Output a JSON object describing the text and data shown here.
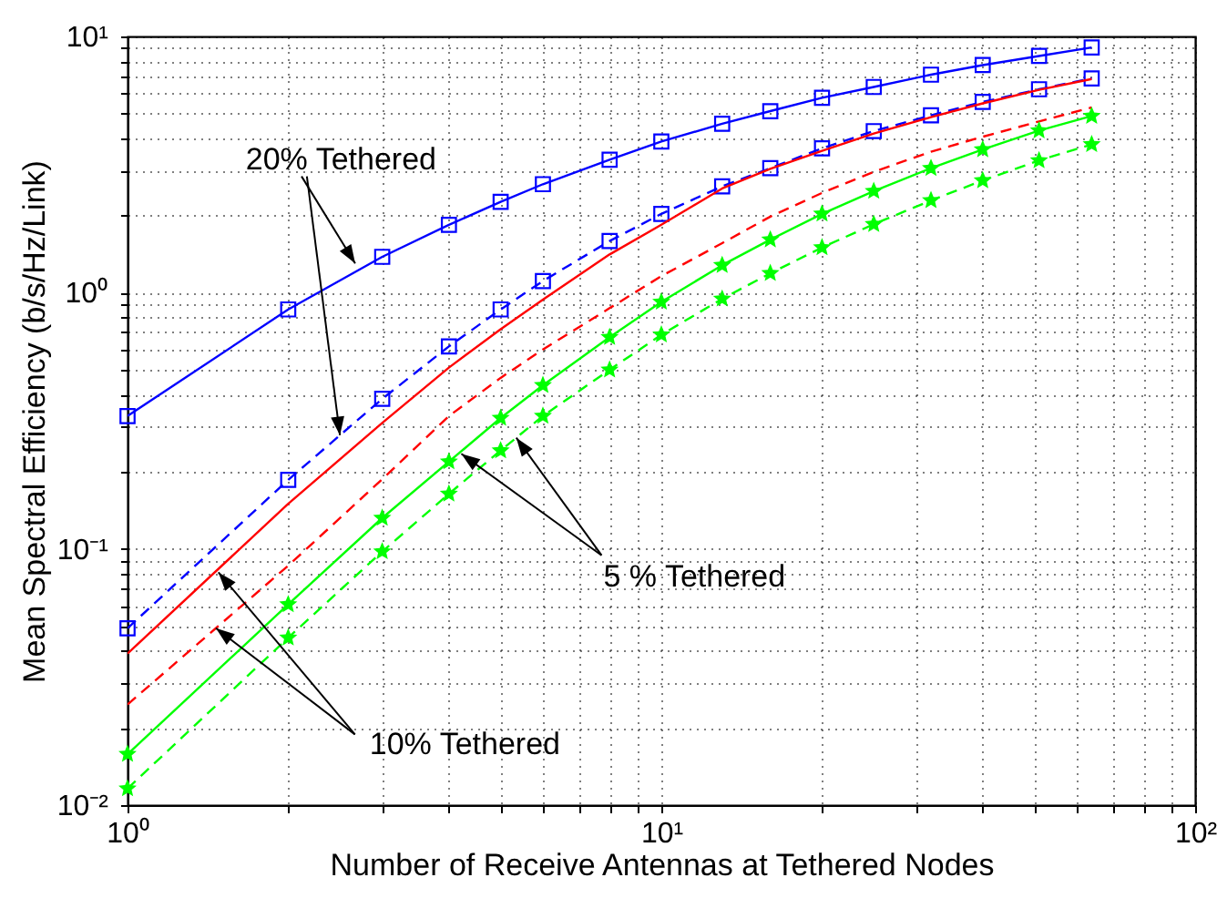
{
  "chart_data": {
    "type": "line",
    "xlabel": "Number of Receive Antennas at Tethered Nodes",
    "ylabel": "Mean Spectral Efficiency (b/s/Hz/Link)",
    "log": "xy",
    "grid": true,
    "x": [
      1,
      2,
      3,
      4,
      5,
      6,
      8,
      10,
      13,
      16,
      20,
      25,
      32,
      40,
      51,
      64
    ],
    "xlim": [
      1,
      100
    ],
    "ylim": [
      0.01,
      10
    ],
    "xticks": [
      {
        "value": 1,
        "label": "10⁰"
      },
      {
        "value": 2,
        "label": null
      },
      {
        "value": 3,
        "label": null
      },
      {
        "value": 4,
        "label": null
      },
      {
        "value": 5,
        "label": null
      },
      {
        "value": 6,
        "label": null
      },
      {
        "value": 7,
        "label": null
      },
      {
        "value": 8,
        "label": null
      },
      {
        "value": 9,
        "label": null
      },
      {
        "value": 10,
        "label": "10¹"
      },
      {
        "value": 20,
        "label": null
      },
      {
        "value": 30,
        "label": null
      },
      {
        "value": 40,
        "label": null
      },
      {
        "value": 50,
        "label": null
      },
      {
        "value": 60,
        "label": null
      },
      {
        "value": 70,
        "label": null
      },
      {
        "value": 80,
        "label": null
      },
      {
        "value": 90,
        "label": null
      },
      {
        "value": 100,
        "label": "10²"
      }
    ],
    "yticks": [
      {
        "value": 0.01,
        "label": "10⁻²"
      },
      {
        "value": 0.02,
        "label": null
      },
      {
        "value": 0.03,
        "label": null
      },
      {
        "value": 0.04,
        "label": null
      },
      {
        "value": 0.05,
        "label": null
      },
      {
        "value": 0.06,
        "label": null
      },
      {
        "value": 0.07,
        "label": null
      },
      {
        "value": 0.08,
        "label": null
      },
      {
        "value": 0.09,
        "label": null
      },
      {
        "value": 0.1,
        "label": "10⁻¹"
      },
      {
        "value": 0.2,
        "label": null
      },
      {
        "value": 0.3,
        "label": null
      },
      {
        "value": 0.4,
        "label": null
      },
      {
        "value": 0.5,
        "label": null
      },
      {
        "value": 0.6,
        "label": null
      },
      {
        "value": 0.7,
        "label": null
      },
      {
        "value": 0.8,
        "label": null
      },
      {
        "value": 0.9,
        "label": null
      },
      {
        "value": 1,
        "label": "10⁰"
      },
      {
        "value": 2,
        "label": null
      },
      {
        "value": 3,
        "label": null
      },
      {
        "value": 4,
        "label": null
      },
      {
        "value": 5,
        "label": null
      },
      {
        "value": 6,
        "label": null
      },
      {
        "value": 7,
        "label": null
      },
      {
        "value": 8,
        "label": null
      },
      {
        "value": 9,
        "label": null
      },
      {
        "value": 10,
        "label": "10¹"
      }
    ],
    "series": [
      {
        "color": "#0000ff",
        "line_style": "solid",
        "marker": "square",
        "values": [
          0.33,
          0.86,
          1.38,
          1.84,
          2.26,
          2.65,
          3.3,
          3.89,
          4.56,
          5.11,
          5.76,
          6.35,
          7.09,
          7.73,
          8.39,
          9.06
        ]
      },
      {
        "color": "#0000ff",
        "line_style": "dashed",
        "marker": "square",
        "values": [
          0.049,
          0.186,
          0.385,
          0.617,
          0.86,
          1.11,
          1.59,
          2.03,
          2.6,
          3.06,
          3.66,
          4.27,
          4.92,
          5.55,
          6.22,
          6.86
        ]
      },
      {
        "color": "#ff0000",
        "line_style": "solid",
        "marker": "none",
        "values": [
          0.039,
          0.15,
          0.31,
          0.51,
          0.72,
          0.94,
          1.41,
          1.84,
          2.55,
          3.04,
          3.58,
          4.18,
          4.84,
          5.48,
          6.19,
          6.82
        ]
      },
      {
        "color": "#ff0000",
        "line_style": "dashed",
        "marker": "none",
        "values": [
          0.0247,
          0.086,
          0.187,
          0.33,
          0.465,
          0.6,
          0.87,
          1.16,
          1.56,
          1.98,
          2.45,
          2.96,
          3.55,
          4.06,
          4.66,
          5.28
        ]
      },
      {
        "color": "#00ff00",
        "line_style": "solid",
        "marker": "star",
        "values": [
          0.0158,
          0.0607,
          0.132,
          0.219,
          0.324,
          0.435,
          0.67,
          0.92,
          1.28,
          1.61,
          2.03,
          2.49,
          3.06,
          3.62,
          4.29,
          4.89
        ]
      },
      {
        "color": "#00ff00",
        "line_style": "dashed",
        "marker": "star",
        "values": [
          0.0116,
          0.045,
          0.0976,
          0.164,
          0.242,
          0.33,
          0.5,
          0.685,
          0.946,
          1.19,
          1.5,
          1.85,
          2.29,
          2.74,
          3.28,
          3.79
        ]
      }
    ],
    "annotations": [
      {
        "text": "20% Tethered",
        "x": 2.67,
        "y": 1.3
      },
      {
        "text": "10% Tethered",
        "x": 1.48,
        "y": 0.081
      },
      {
        "text": "5 % Tethered",
        "x": 4.22,
        "y": 0.235
      }
    ]
  }
}
